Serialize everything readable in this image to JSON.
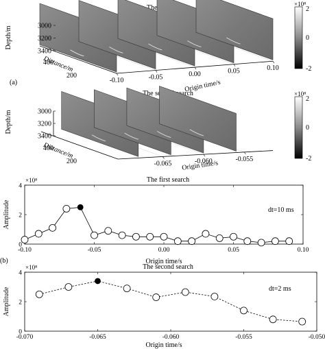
{
  "panel_labels": {
    "a": "(a)",
    "b": "(b)"
  },
  "colorbar": {
    "exponent_label": "×10⁸",
    "ticks": [
      "2",
      "0",
      "-2"
    ]
  },
  "chart_data": [
    {
      "type": "3d-slices",
      "title": "The first search",
      "xlabel": "Origin time/s",
      "ylabel": "Distance/m",
      "zlabel": "Depth/m",
      "x_ticks": [
        "-0.10",
        "-0.05",
        "0.00",
        "0.05",
        "0.10"
      ],
      "y_ticks": [
        "400",
        "200"
      ],
      "z_ticks": [
        "3000",
        "3200",
        "3400"
      ],
      "slices": [
        -0.1,
        -0.05,
        0.0,
        0.05,
        0.1
      ],
      "clim": [
        -2,
        2
      ]
    },
    {
      "type": "3d-slices",
      "title": "The second search",
      "xlabel": "Origin time/s",
      "ylabel": "Distance/m",
      "zlabel": "Depth/m",
      "x_ticks": [
        "-0.065",
        "-0.060",
        "-0.055"
      ],
      "y_ticks": [
        "400",
        "200"
      ],
      "z_ticks": [
        "3000",
        "3200",
        "3400"
      ],
      "slices": [
        -0.068,
        -0.064,
        -0.06,
        -0.056
      ],
      "clim": [
        -2,
        2
      ]
    },
    {
      "type": "line",
      "title": "The first search",
      "xlabel": "Origin time/s",
      "ylabel": "Amplitude",
      "y_exponent": "×10⁸",
      "annotation": "dt=10 ms",
      "xlim": [
        -0.1,
        0.1
      ],
      "ylim": [
        0,
        4
      ],
      "x_ticks": [
        "-0.10",
        "-0.05",
        "0.00",
        "0.05",
        "0.10"
      ],
      "y_ticks": [
        "0",
        "2",
        "4"
      ],
      "x": [
        -0.1,
        -0.09,
        -0.08,
        -0.07,
        -0.06,
        -0.05,
        -0.04,
        -0.03,
        -0.02,
        -0.01,
        0.0,
        0.01,
        0.02,
        0.03,
        0.04,
        0.05,
        0.06,
        0.07,
        0.08,
        0.09
      ],
      "y": [
        0.3,
        0.7,
        1.1,
        2.4,
        2.5,
        0.6,
        0.9,
        0.6,
        0.5,
        0.5,
        0.5,
        0.2,
        0.2,
        0.7,
        0.4,
        0.5,
        0.2,
        0.1,
        0.2,
        0.2
      ],
      "highlight_x": -0.06,
      "line_style": "solid"
    },
    {
      "type": "line",
      "title": "The second search",
      "xlabel": "Origin time/s",
      "ylabel": "Amplitude",
      "y_exponent": "×10⁸",
      "annotation": "dt=2 ms",
      "xlim": [
        -0.07,
        -0.05
      ],
      "ylim": [
        0,
        4
      ],
      "x_ticks": [
        "-0.070",
        "-0.065",
        "-0.060",
        "-0.055",
        "-0.050"
      ],
      "y_ticks": [
        "0",
        "2",
        "4"
      ],
      "x": [
        -0.069,
        -0.067,
        -0.065,
        -0.063,
        -0.061,
        -0.059,
        -0.057,
        -0.055,
        -0.053,
        -0.051
      ],
      "y": [
        2.5,
        3.0,
        3.4,
        2.9,
        2.3,
        2.65,
        2.35,
        1.4,
        0.8,
        0.65
      ],
      "highlight_x": -0.065,
      "line_style": "dashed"
    }
  ]
}
